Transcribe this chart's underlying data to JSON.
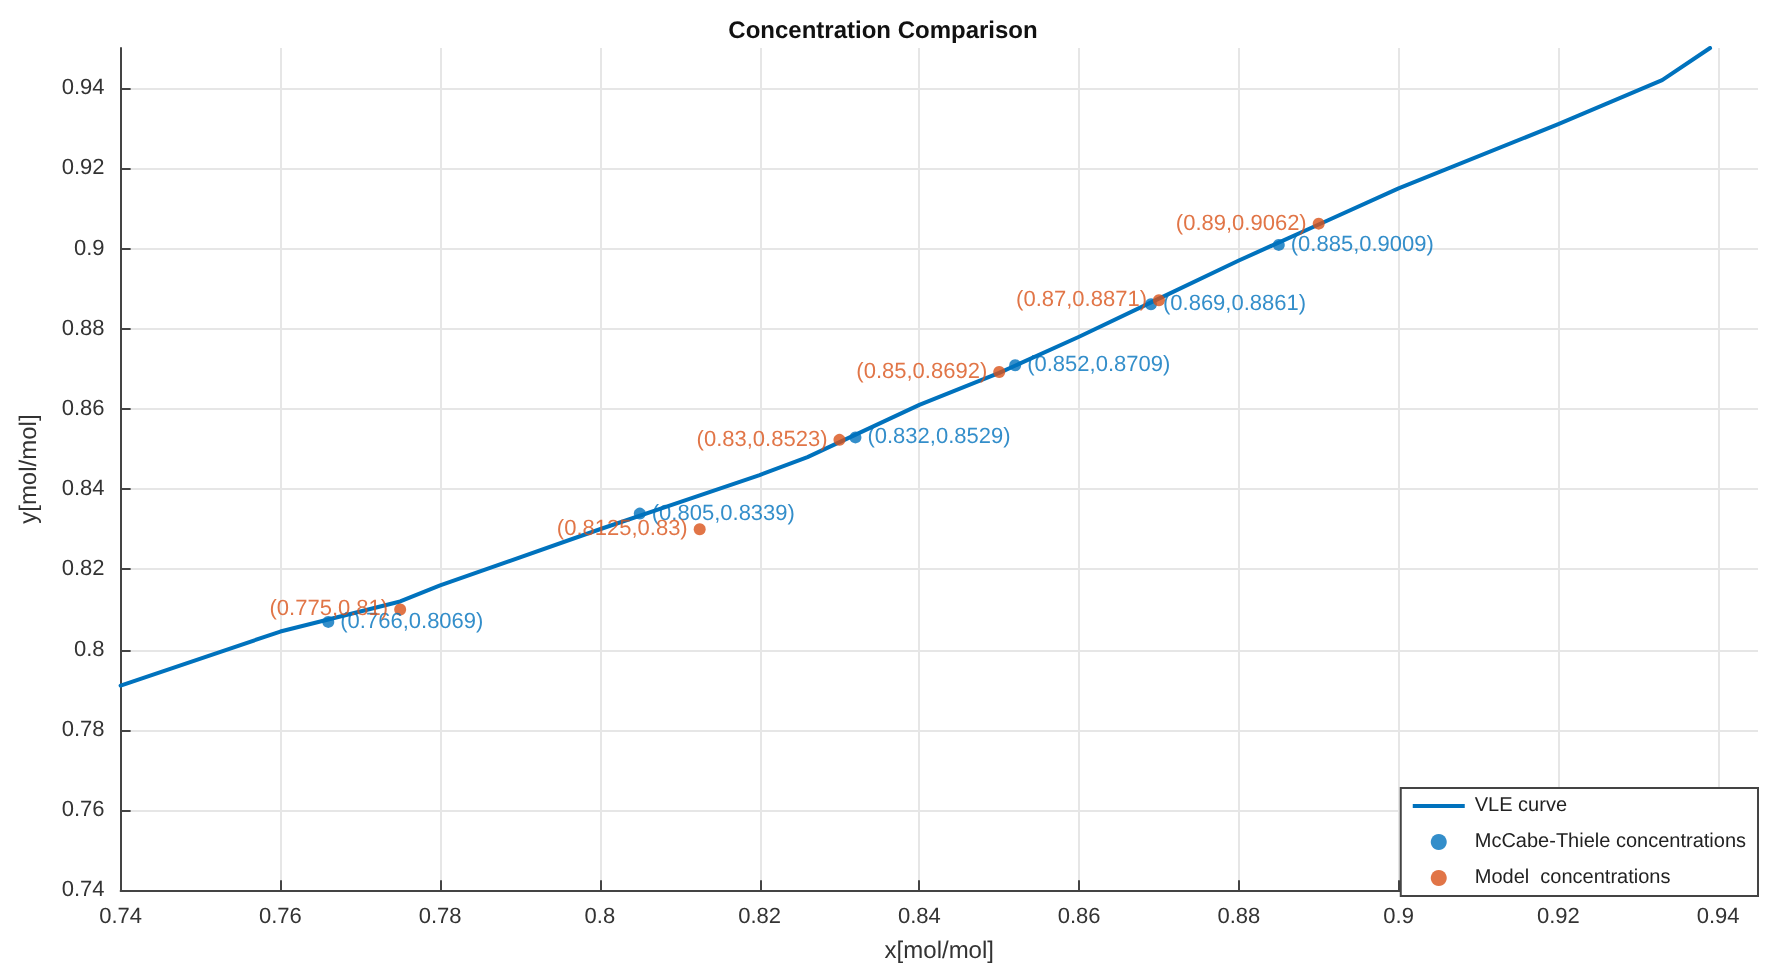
{
  "chart_data": {
    "type": "scatter",
    "title": "Concentration Comparison",
    "xlabel": "x[mol/mol]",
    "ylabel": "y[mol/mol]",
    "xlim": [
      0.74,
      0.945
    ],
    "ylim": [
      0.74,
      0.95
    ],
    "xticks": [
      0.74,
      0.76,
      0.78,
      0.8,
      0.82,
      0.84,
      0.86,
      0.88,
      0.9,
      0.92,
      0.94
    ],
    "yticks": [
      0.74,
      0.76,
      0.78,
      0.8,
      0.82,
      0.84,
      0.86,
      0.88,
      0.9,
      0.92,
      0.94
    ],
    "grid": true,
    "legend": "bottom right",
    "marker": "circle",
    "series": [
      {
        "name": "VLE curve",
        "type": "line",
        "marker": "none",
        "color": "#0072bd",
        "x": [
          0.74,
          0.76,
          0.775,
          0.78,
          0.8,
          0.82,
          0.826,
          0.84,
          0.85,
          0.86,
          0.87,
          0.88,
          0.89,
          0.9,
          0.92,
          0.933,
          0.939
        ],
        "values": [
          0.791,
          0.8045,
          0.812,
          0.816,
          0.83,
          0.8435,
          0.848,
          0.861,
          0.869,
          0.878,
          0.8875,
          0.897,
          0.906,
          0.915,
          0.931,
          0.942,
          0.95
        ]
      },
      {
        "name": "McCabe-Thiele concentrations",
        "color": "#0072bd",
        "x": [
          0.766,
          0.805,
          0.832,
          0.852,
          0.869,
          0.885
        ],
        "values": [
          0.8069,
          0.8339,
          0.8529,
          0.8709,
          0.8861,
          0.9009
        ],
        "value_labels": [
          "(0.766,0.8069)",
          "(0.805,0.8339)",
          "(0.832,0.8529)",
          "(0.852,0.8709)",
          "(0.869,0.8861)",
          "(0.885,0.9009)"
        ]
      },
      {
        "name": "Model  concentrations",
        "color": "#d95319",
        "x": [
          0.775,
          0.8125,
          0.83,
          0.85,
          0.87,
          0.89
        ],
        "values": [
          0.81,
          0.83,
          0.8523,
          0.8692,
          0.8871,
          0.9062
        ],
        "value_labels": [
          "(0.775,0.81)",
          "(0.8125,0.83)",
          "(0.83,0.8523)",
          "(0.85,0.8692)",
          "(0.87,0.8871)",
          "(0.89,0.9062)"
        ]
      }
    ]
  }
}
